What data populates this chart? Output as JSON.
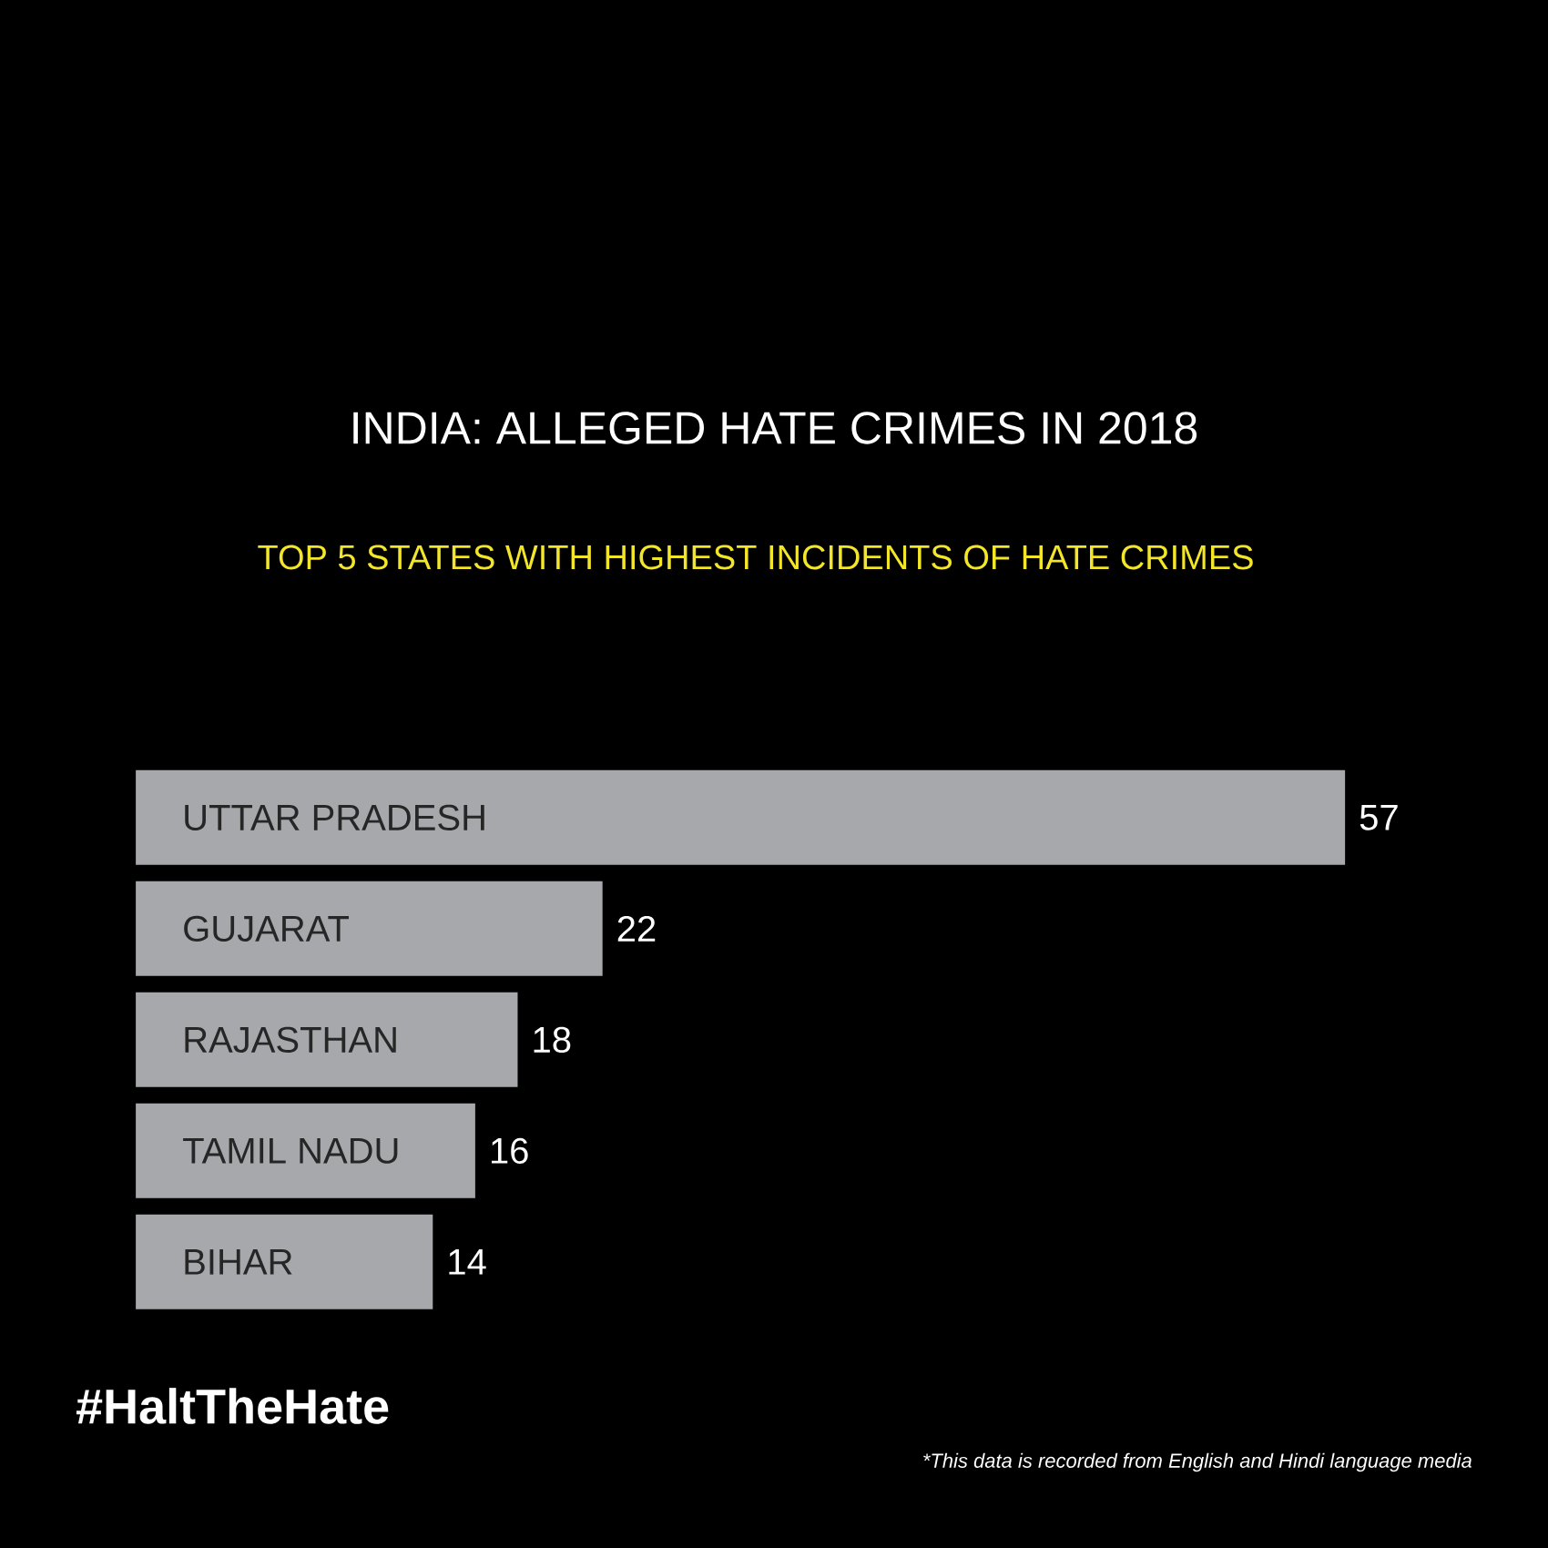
{
  "chart_data": {
    "type": "bar",
    "orientation": "horizontal",
    "title": "INDIA: ALLEGED HATE CRIMES IN 2018",
    "subtitle": "TOP 5 STATES WITH HIGHEST INCIDENTS OF HATE CRIMES",
    "categories": [
      "UTTAR PRADESH",
      "GUJARAT",
      "RAJASTHAN",
      "TAMIL NADU",
      "BIHAR"
    ],
    "values": [
      57,
      22,
      18,
      16,
      14
    ],
    "color": "#a7a8ac",
    "data_labels": true,
    "annotations": [
      "#HaltTheHate",
      "*This data is recorded from English and Hindi language media"
    ]
  }
}
